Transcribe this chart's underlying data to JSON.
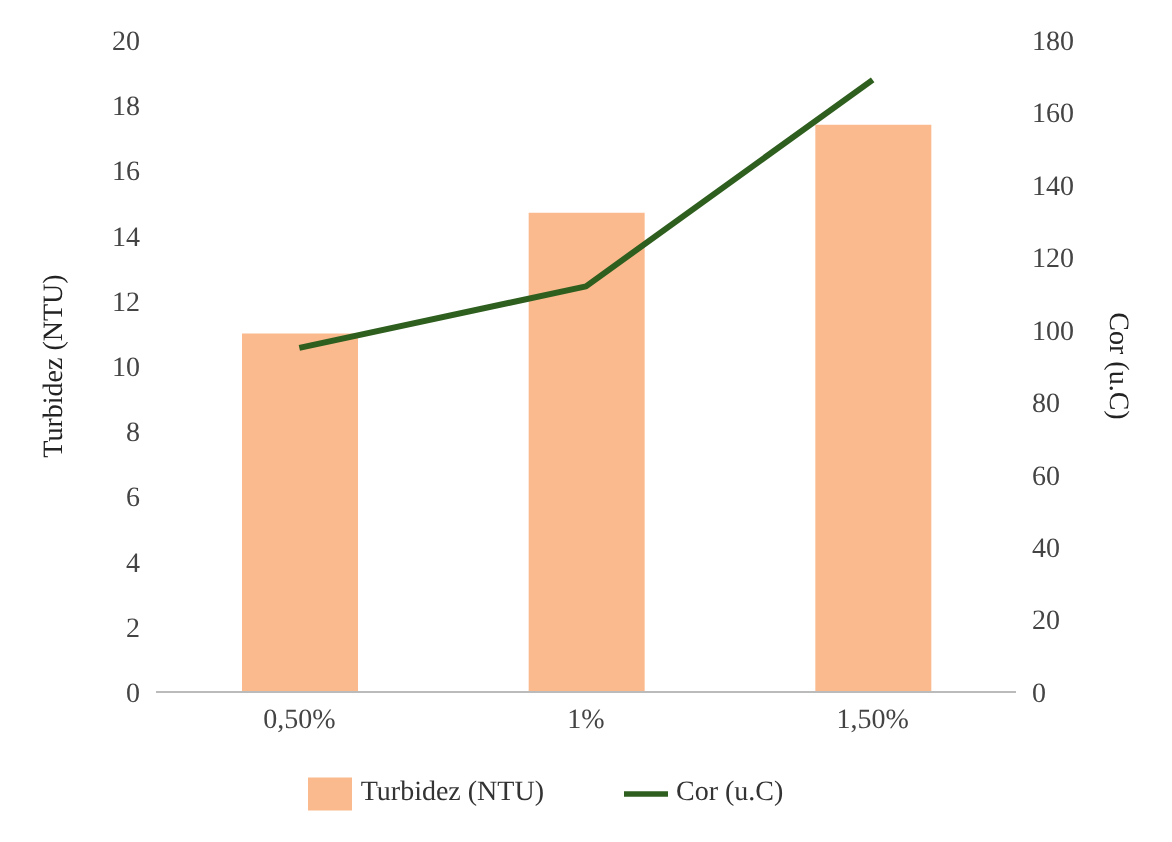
{
  "chart_data": {
    "type": "bar",
    "categories": [
      "0,50%",
      "1%",
      "1,50%"
    ],
    "ylabel": "Turbidez (NTU)",
    "y2label": "Cor (u.C)",
    "ylim": [
      0,
      20
    ],
    "yticks": [
      0,
      2,
      4,
      6,
      8,
      10,
      12,
      14,
      16,
      18,
      20
    ],
    "y2lim": [
      0,
      180
    ],
    "y2ticks": [
      0,
      20,
      40,
      60,
      80,
      100,
      120,
      140,
      160,
      180
    ],
    "series": [
      {
        "name": "Turbidez (NTU)",
        "color": "#fbba8e",
        "values": [
          11.0,
          14.7,
          17.4
        ]
      },
      {
        "name": "Cor (u.C)",
        "type": "line",
        "axis": "y2",
        "color": "#2f5f1f",
        "values": [
          95,
          112,
          169
        ],
        "marker": "none"
      }
    ],
    "legend": "bottom",
    "grid": false
  }
}
